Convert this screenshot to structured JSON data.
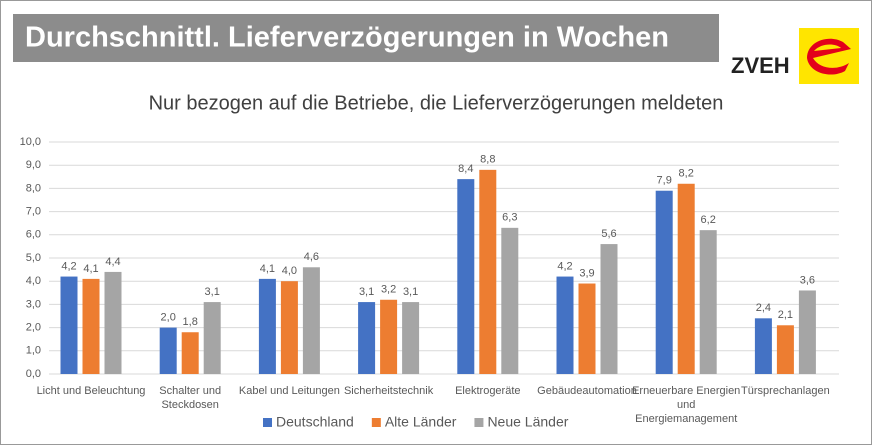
{
  "header": {
    "title": "Durchschnittl. Lieferverzögerungen in Wochen",
    "logo": "ZVEH"
  },
  "chart_data": {
    "type": "bar",
    "title": "Nur bezogen auf die Betriebe, die Lieferverzögerungen meldeten",
    "categories": [
      "Licht und Beleuchtung",
      "Schalter und Steckdosen",
      "Kabel und Leitungen",
      "Sicherheitstechnik",
      "Elektrogeräte",
      "Gebäudeautomation",
      "Erneuerbare Energien und Energiemanagement",
      "Türsprechanlagen"
    ],
    "series": [
      {
        "name": "Deutschland",
        "color": "#4472c4",
        "values": [
          4.2,
          2.0,
          4.1,
          3.1,
          8.4,
          4.2,
          7.9,
          2.4
        ],
        "value_labels": [
          "4,2",
          "2,0",
          "4,1",
          "3,1",
          "8,4",
          "4,2",
          "7,9",
          "2,4"
        ]
      },
      {
        "name": "Alte Länder",
        "color": "#ed7d31",
        "values": [
          4.1,
          1.8,
          4.0,
          3.2,
          8.8,
          3.9,
          8.2,
          2.1
        ],
        "value_labels": [
          "4,1",
          "1,8",
          "4,0",
          "3,2",
          "8,8",
          "3,9",
          "8,2",
          "2,1"
        ]
      },
      {
        "name": "Neue Länder",
        "color": "#a5a5a5",
        "values": [
          4.4,
          3.1,
          4.6,
          3.1,
          6.3,
          5.6,
          6.2,
          3.6
        ],
        "value_labels": [
          "4,4",
          "3,1",
          "4,6",
          "3,1",
          "6,3",
          "5,6",
          "6,2",
          "3,6"
        ]
      }
    ],
    "ylim": [
      0,
      10
    ],
    "yticks": [
      {
        "value": 0,
        "label": "0,0"
      },
      {
        "value": 1,
        "label": "1,0"
      },
      {
        "value": 2,
        "label": "2,0"
      },
      {
        "value": 3,
        "label": "3,0"
      },
      {
        "value": 4,
        "label": "4,0"
      },
      {
        "value": 5,
        "label": "5,0"
      },
      {
        "value": 6,
        "label": "6,0"
      },
      {
        "value": 7,
        "label": "7,0"
      },
      {
        "value": 8,
        "label": "8,0"
      },
      {
        "value": 9,
        "label": "9,0"
      },
      {
        "value": 10,
        "label": "10,0"
      }
    ],
    "grid": true,
    "legend": "bottom"
  }
}
